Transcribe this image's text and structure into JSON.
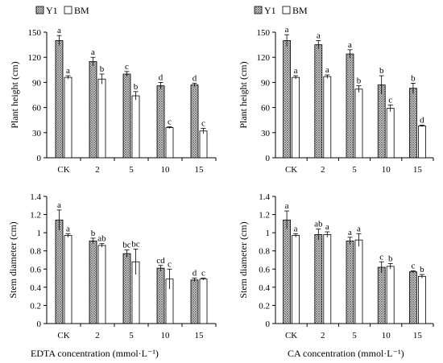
{
  "legend": [
    {
      "name": "Y1",
      "style": "hatched"
    },
    {
      "name": "BM",
      "style": "open"
    }
  ],
  "colors": {
    "hatch_fill": "#9a9a9a",
    "background": "#ffffff",
    "stroke": "#000000"
  },
  "xlabels": {
    "left": "EDTA  concentration  (mmol·L⁻¹)",
    "right": "CA concentration  (mmol·L⁻¹)"
  },
  "chart_data": [
    {
      "type": "bar",
      "position": "top-left",
      "categories": [
        "CK",
        "2",
        "5",
        "10",
        "15"
      ],
      "ylabel": "Plant height (cm)",
      "ylim": [
        0,
        150
      ],
      "yticks": [
        "0",
        "30",
        "60",
        "90",
        "120",
        "150"
      ],
      "series": [
        {
          "name": "Y1",
          "values": [
            140,
            115,
            100,
            86,
            87
          ],
          "errors": [
            6,
            5,
            3,
            4,
            2
          ],
          "letters": [
            "a",
            "a",
            "c",
            "d",
            "d"
          ]
        },
        {
          "name": "BM",
          "values": [
            96,
            94,
            74,
            36,
            32
          ],
          "errors": [
            2,
            6,
            5,
            1,
            3
          ],
          "letters": [
            "a",
            "b",
            "b",
            "c",
            "c"
          ]
        }
      ]
    },
    {
      "type": "bar",
      "position": "top-right",
      "categories": [
        "CK",
        "2",
        "5",
        "10",
        "15"
      ],
      "ylabel": "Plant height (cm)",
      "ylim": [
        0,
        150
      ],
      "yticks": [
        "0",
        "30",
        "60",
        "90",
        "120",
        "150"
      ],
      "series": [
        {
          "name": "Y1",
          "values": [
            140,
            135,
            124,
            87,
            83
          ],
          "errors": [
            7,
            5,
            5,
            11,
            6
          ],
          "letters": [
            "a",
            "a",
            "a",
            "b",
            "b"
          ]
        },
        {
          "name": "BM",
          "values": [
            96,
            97,
            82,
            59,
            38
          ],
          "errors": [
            2,
            2,
            4,
            4,
            1
          ],
          "letters": [
            "a",
            "a",
            "b",
            "c",
            "d"
          ]
        }
      ]
    },
    {
      "type": "bar",
      "position": "bottom-left",
      "categories": [
        "CK",
        "2",
        "5",
        "10",
        "15"
      ],
      "ylabel": "Stem diameter (cm)",
      "ylim": [
        0,
        1.4
      ],
      "yticks": [
        "0",
        "0.2",
        "0.4",
        "0.6",
        "0.8",
        "1",
        "1.2",
        "1.4"
      ],
      "series": [
        {
          "name": "Y1",
          "values": [
            1.14,
            0.91,
            0.77,
            0.61,
            0.48
          ],
          "errors": [
            0.11,
            0.03,
            0.04,
            0.03,
            0.02
          ],
          "letters": [
            "a",
            "b",
            "bc",
            "cd",
            "d"
          ]
        },
        {
          "name": "BM",
          "values": [
            0.97,
            0.86,
            0.68,
            0.49,
            0.49
          ],
          "errors": [
            0.02,
            0.02,
            0.14,
            0.11,
            0.01
          ],
          "letters": [
            "a",
            "ab",
            "bc",
            "c",
            "c"
          ]
        }
      ]
    },
    {
      "type": "bar",
      "position": "bottom-right",
      "categories": [
        "CK",
        "2",
        "5",
        "10",
        "15"
      ],
      "ylabel": "Stem diameter (cm)",
      "ylim": [
        0,
        1.4
      ],
      "yticks": [
        "0",
        "0.2",
        "0.4",
        "0.6",
        "0.8",
        "1",
        "1.2",
        "1.4"
      ],
      "series": [
        {
          "name": "Y1",
          "values": [
            1.14,
            0.98,
            0.91,
            0.62,
            0.57
          ],
          "errors": [
            0.1,
            0.06,
            0.04,
            0.06,
            0.01
          ],
          "letters": [
            "a",
            "ab",
            "a",
            "c",
            "c"
          ]
        },
        {
          "name": "BM",
          "values": [
            0.97,
            0.98,
            0.92,
            0.63,
            0.52
          ],
          "errors": [
            0.02,
            0.03,
            0.07,
            0.03,
            0.02
          ],
          "letters": [
            "a",
            "a",
            "a",
            "b",
            "b"
          ]
        }
      ]
    }
  ]
}
